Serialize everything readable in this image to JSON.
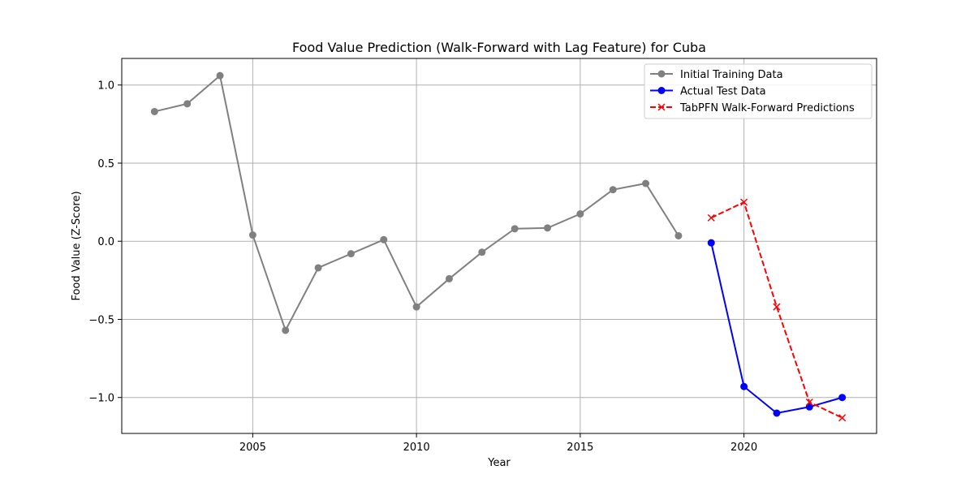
{
  "chart_data": {
    "type": "line",
    "title": "Food Value Prediction (Walk-Forward with Lag Feature) for Cuba",
    "xlabel": "Year",
    "ylabel": "Food Value (Z-Score)",
    "xlim": [
      2001.0,
      2024.05
    ],
    "ylim": [
      -1.23,
      1.17
    ],
    "xticks": [
      2005,
      2010,
      2015,
      2020
    ],
    "yticks": [
      -1.0,
      -0.5,
      0.0,
      0.5,
      1.0
    ],
    "xtick_labels": [
      "2005",
      "2010",
      "2015",
      "2020"
    ],
    "ytick_labels": [
      "−1.0",
      "−0.5",
      "0.0",
      "0.5",
      "1.0"
    ],
    "grid": true,
    "legend_position": "top-right",
    "series": [
      {
        "name": "Initial Training Data",
        "color": "#808080",
        "style": "solid",
        "marker": "circle",
        "x": [
          2002,
          2003,
          2004,
          2005,
          2006,
          2007,
          2008,
          2009,
          2010,
          2011,
          2012,
          2013,
          2014,
          2015,
          2016,
          2017,
          2018
        ],
        "y": [
          0.83,
          0.88,
          1.06,
          0.04,
          -0.57,
          -0.17,
          -0.08,
          0.01,
          -0.42,
          -0.24,
          -0.07,
          0.08,
          0.085,
          0.175,
          0.33,
          0.37,
          0.035
        ]
      },
      {
        "name": "Actual Test Data",
        "color": "#0000ff",
        "style": "solid",
        "marker": "circle",
        "x": [
          2019,
          2020,
          2021,
          2022,
          2023
        ],
        "y": [
          -0.01,
          -0.93,
          -1.1,
          -1.06,
          -1.0
        ]
      },
      {
        "name": "TabPFN Walk-Forward Predictions",
        "color": "#ff0000",
        "style": "dashed",
        "marker": "x",
        "x": [
          2019,
          2020,
          2021,
          2022,
          2023
        ],
        "y": [
          0.15,
          0.25,
          -0.42,
          -1.03,
          -1.13
        ]
      }
    ]
  }
}
